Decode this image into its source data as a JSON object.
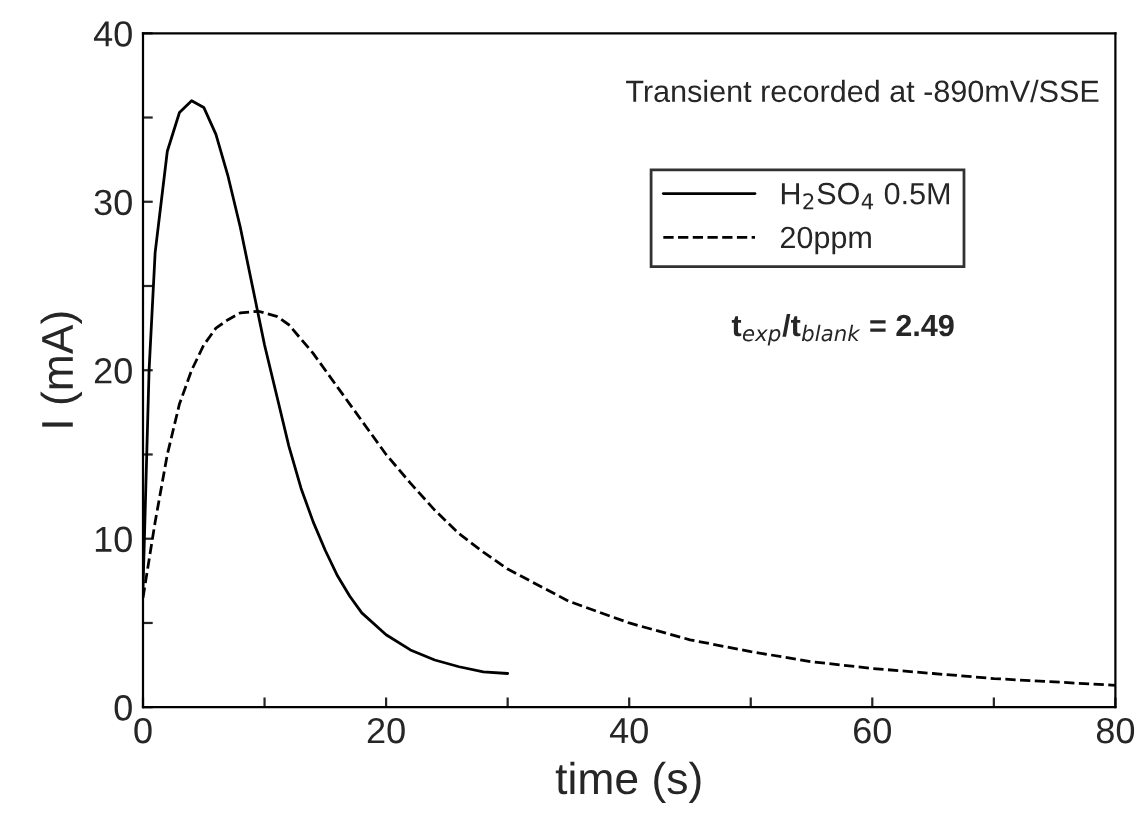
{
  "chart_data": {
    "type": "line",
    "xlabel": "time (s)",
    "ylabel": "I (mA)",
    "xlim": [
      0,
      80
    ],
    "ylim": [
      0,
      40
    ],
    "xticks": [
      0,
      {
        "value": 10,
        "label": null
      },
      20,
      {
        "value": 30,
        "label": null
      },
      40,
      {
        "value": 50,
        "label": null
      },
      60,
      {
        "value": 70,
        "label": null
      },
      80
    ],
    "yticks": [
      0,
      {
        "value": 5,
        "label": null
      },
      10,
      {
        "value": 15,
        "label": null
      },
      20,
      {
        "value": 25,
        "label": null
      },
      30,
      {
        "value": 35,
        "label": null
      },
      40
    ],
    "grid": false,
    "legend": "top right",
    "annotations": [
      "Transient recorded at -890mV/SSE",
      "t$_{exp}$/t$_{blank}$ = 2.49"
    ],
    "series": [
      {
        "name": "H$_{2}$SO$_{4}$ 0.5M",
        "color": "#000000",
        "line_style": "solid",
        "x": [
          0,
          0.5,
          1,
          2,
          3,
          4,
          5,
          6,
          7,
          8,
          9,
          10,
          11,
          12,
          13,
          14,
          15,
          16,
          17,
          18,
          20,
          22,
          24,
          26,
          28,
          30
        ],
        "values": [
          7,
          20,
          27,
          33,
          35.3,
          36,
          35.6,
          34,
          31.5,
          28.5,
          25,
          21.5,
          18.5,
          15.5,
          13,
          11,
          9.3,
          7.8,
          6.6,
          5.6,
          4.3,
          3.4,
          2.8,
          2.4,
          2.1,
          2.0
        ]
      },
      {
        "name": "20ppm",
        "color": "#000000",
        "line_style": "dashed",
        "x": [
          0,
          1,
          2,
          3,
          4,
          5,
          6,
          7,
          8,
          9.5,
          11,
          12,
          14,
          16,
          18,
          20,
          22,
          24,
          26,
          28,
          30,
          35,
          40,
          45,
          50,
          55,
          60,
          65,
          70,
          75,
          80
        ],
        "values": [
          6.5,
          11,
          15,
          18,
          20,
          21.5,
          22.5,
          23,
          23.4,
          23.5,
          23.2,
          22.7,
          21,
          19,
          17,
          15,
          13.3,
          11.7,
          10.3,
          9.2,
          8.2,
          6.3,
          5,
          4,
          3.3,
          2.7,
          2.3,
          2,
          1.7,
          1.5,
          1.3
        ]
      }
    ]
  }
}
